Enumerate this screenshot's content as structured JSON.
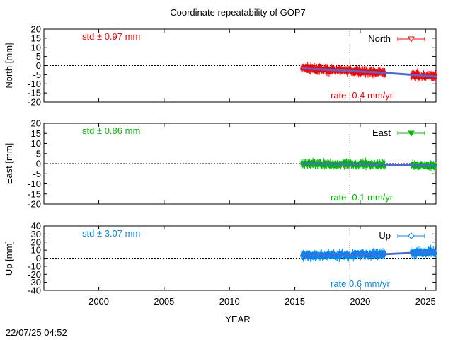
{
  "chart_data": {
    "type": "scatter",
    "title": "Coordinate repeatability of GOP7",
    "xlabel": "YEAR",
    "xlim": [
      1995.8,
      2025.8
    ],
    "xticks": [
      2000,
      2005,
      2010,
      2015,
      2020,
      2025
    ],
    "vline": 2019.2,
    "timestamp": "22/07/25 04:52",
    "panels": [
      {
        "key": "north",
        "ylabel": "North [mm]",
        "ylim": [
          -20,
          20
        ],
        "yticks": [
          -20,
          -15,
          -10,
          -5,
          0,
          5,
          10,
          15,
          20
        ],
        "color": "#ff0000",
        "std_label": "std ± 0.97 mm",
        "rate_label": "rate -0.4 mm/yr",
        "legend": "North",
        "marker": "triangle-down-open",
        "segments": [
          {
            "start": 2015.5,
            "end": 2021.9,
            "spread": 2.0
          },
          {
            "start": 2023.9,
            "end": 2025.8,
            "spread": 2.5
          }
        ],
        "trend": [
          [
            2015.5,
            -1.5
          ],
          [
            2021.9,
            -4.0
          ],
          [
            2025.8,
            -6.0
          ]
        ]
      },
      {
        "key": "east",
        "ylabel": "East [mm]",
        "ylim": [
          -20,
          20
        ],
        "yticks": [
          -20,
          -15,
          -10,
          -5,
          0,
          5,
          10,
          15,
          20
        ],
        "color": "#00bb00",
        "std_label": "std ± 0.86 mm",
        "rate_label": "rate -0.1 mm/yr",
        "legend": "East",
        "marker": "triangle-down-filled",
        "segments": [
          {
            "start": 2015.5,
            "end": 2021.9,
            "spread": 1.8
          },
          {
            "start": 2023.9,
            "end": 2025.8,
            "spread": 1.5
          }
        ],
        "trend": [
          [
            2015.5,
            0.0
          ],
          [
            2021.9,
            -0.5
          ],
          [
            2025.8,
            -1.0
          ]
        ]
      },
      {
        "key": "up",
        "ylabel": "Up [mm]",
        "ylim": [
          -40,
          40
        ],
        "yticks": [
          -40,
          -30,
          -20,
          -10,
          0,
          10,
          20,
          30,
          40
        ],
        "color": "#0088ee",
        "std_label": "std ± 3.07 mm",
        "rate_label": "rate  0.6 mm/yr",
        "legend": "Up",
        "marker": "diamond-open",
        "segments": [
          {
            "start": 2015.5,
            "end": 2021.9,
            "spread": 5.5
          },
          {
            "start": 2023.9,
            "end": 2025.8,
            "spread": 6.0
          }
        ],
        "trend": [
          [
            2015.5,
            3.0
          ],
          [
            2021.9,
            5.0
          ],
          [
            2025.8,
            8.0
          ]
        ]
      }
    ]
  }
}
